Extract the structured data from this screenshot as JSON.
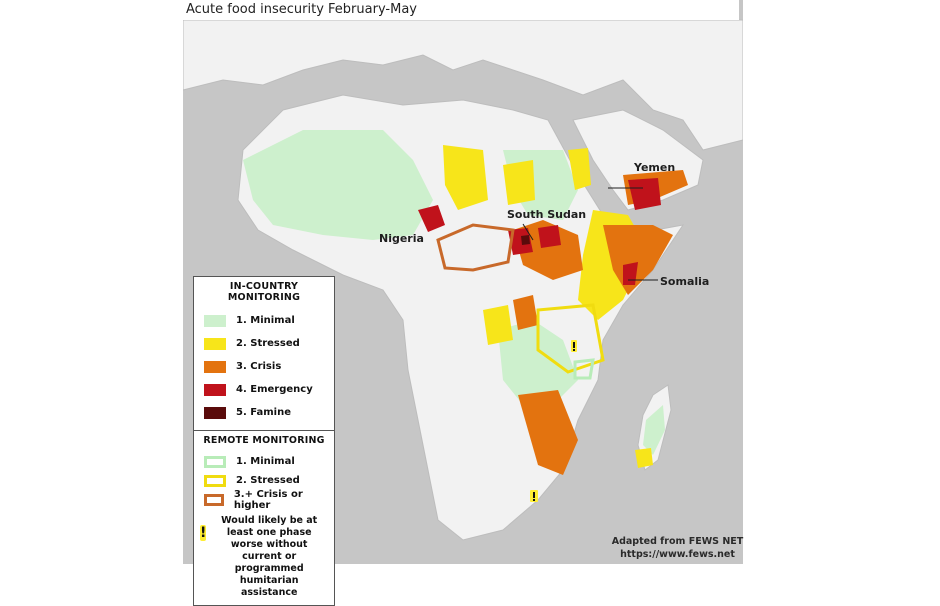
{
  "title": "Acute food insecurity February-May",
  "colors": {
    "ocean": "#c6c6c6",
    "land": "#f2f2f2",
    "minimal": "#cdf0cd",
    "stressed": "#f7e51a",
    "crisis": "#e3730f",
    "emergency": "#c0121b",
    "famine": "#5a0b0b",
    "remote_crisis_outline": "#c8692a"
  },
  "country_labels": {
    "nigeria": "Nigeria",
    "south_sudan": "South Sudan",
    "yemen": "Yemen",
    "somalia": "Somalia"
  },
  "legend": {
    "in_country_heading": "IN-COUNTRY MONITORING",
    "in_country_items": [
      {
        "label": "1. Minimal",
        "color": "#cdf0cd"
      },
      {
        "label": "2. Stressed",
        "color": "#f7e51a"
      },
      {
        "label": "3. Crisis",
        "color": "#e3730f"
      },
      {
        "label": "4. Emergency",
        "color": "#c0121b"
      },
      {
        "label": "5. Famine",
        "color": "#5a0b0b"
      }
    ],
    "remote_heading": "REMOTE MONITORING",
    "remote_items": [
      {
        "label": "1. Minimal",
        "color": "#b8ecb8"
      },
      {
        "label": "2. Stressed",
        "color": "#f0dc10"
      },
      {
        "label": "3.+ Crisis or higher",
        "color": "#c8692a"
      }
    ],
    "note_mark": "!",
    "note_text": "Would likely be at least one phase worse without current or programmed humitarian assistance"
  },
  "credit": {
    "line1": "Adapted from FEWS NET",
    "line2": "https://www.fews.net"
  }
}
